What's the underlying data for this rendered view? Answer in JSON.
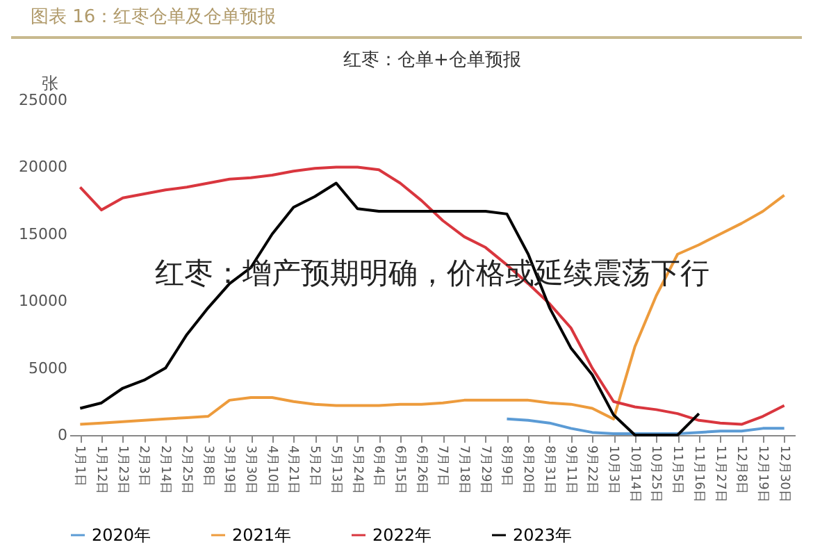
{
  "chart_data": {
    "type": "line",
    "title": "图表 16：红枣仓单及仓单预报",
    "subtitle": "红枣：仓单+仓单预报",
    "ylabel": "张",
    "categories": [
      "1月1日",
      "1月12日",
      "1月23日",
      "2月3日",
      "2月14日",
      "2月25日",
      "3月8日",
      "3月19日",
      "3月30日",
      "4月10日",
      "4月21日",
      "5月2日",
      "5月13日",
      "5月24日",
      "6月4日",
      "6月15日",
      "6月26日",
      "7月7日",
      "7月18日",
      "7月29日",
      "8月9日",
      "8月20日",
      "8月31日",
      "9月11日",
      "9月22日",
      "10月3日",
      "10月14日",
      "10月25日",
      "11月5日",
      "11月16日",
      "11月27日",
      "12月8日",
      "12月19日",
      "12月30日"
    ],
    "series": [
      {
        "name": "2020年",
        "color": "#5b9bd5",
        "values": [
          null,
          null,
          null,
          null,
          null,
          null,
          null,
          null,
          null,
          null,
          null,
          null,
          null,
          null,
          null,
          null,
          null,
          null,
          null,
          null,
          1200,
          1100,
          900,
          500,
          200,
          100,
          100,
          100,
          100,
          200,
          300,
          300,
          500,
          500
        ]
      },
      {
        "name": "2021年",
        "color": "#ed9b3c",
        "values": [
          800,
          900,
          1000,
          1100,
          1200,
          1300,
          1400,
          2600,
          2800,
          2800,
          2500,
          2300,
          2200,
          2200,
          2200,
          2300,
          2300,
          2400,
          2600,
          2600,
          2600,
          2600,
          2400,
          2300,
          2000,
          1200,
          6600,
          10400,
          13500,
          14200,
          15000,
          15800,
          16700,
          17900
        ]
      },
      {
        "name": "2022年",
        "color": "#d9363e",
        "values": [
          18500,
          16800,
          17700,
          18000,
          18300,
          18500,
          18800,
          19100,
          19200,
          19400,
          19700,
          19900,
          20000,
          20000,
          19800,
          18800,
          17500,
          16000,
          14800,
          14000,
          12700,
          11300,
          9800,
          8000,
          5000,
          2500,
          2100,
          1900,
          1600,
          1100,
          900,
          800,
          1400,
          2200
        ]
      },
      {
        "name": "2023年",
        "color": "#000000",
        "values": [
          2000,
          2400,
          3500,
          4100,
          5000,
          7500,
          9500,
          11300,
          12500,
          15000,
          17000,
          17800,
          18800,
          16900,
          16700,
          16700,
          16700,
          16700,
          16700,
          16700,
          16500,
          13500,
          9500,
          6500,
          4500,
          1500,
          0,
          0,
          0,
          1600,
          null,
          null,
          null,
          null
        ]
      }
    ],
    "ylim": [
      0,
      25000
    ],
    "yticks": [
      0,
      5000,
      10000,
      15000,
      20000,
      25000
    ],
    "grid": false,
    "legend": "bottom",
    "marker": "none",
    "line_style": "solid",
    "annotations": [
      "红枣：增产预期明确，价格或延续震荡下行"
    ]
  }
}
